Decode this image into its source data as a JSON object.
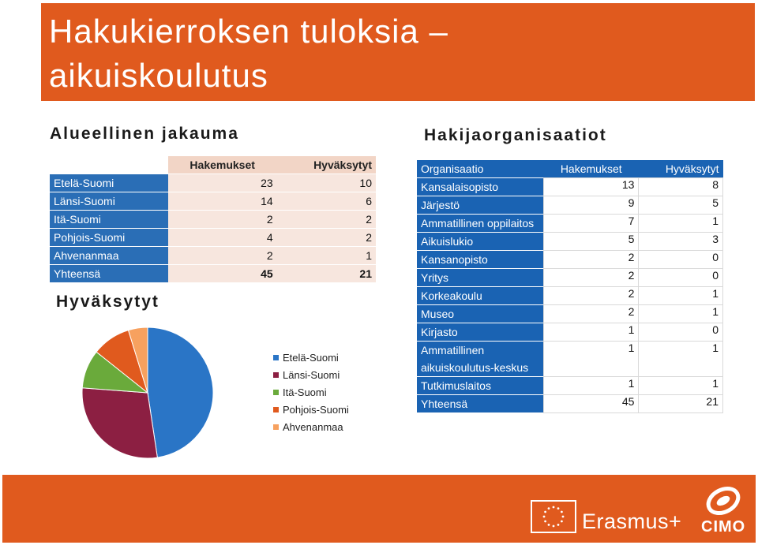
{
  "title": "Hakukierroksen tuloksia – aikuiskoulutus",
  "regional": {
    "heading": "Alueellinen jakauma",
    "columns": [
      "Hakemukset",
      "Hyväksytyt"
    ],
    "rows": [
      {
        "name": "Etelä-Suomi",
        "applications": "23",
        "accepted": "10"
      },
      {
        "name": "Länsi-Suomi",
        "applications": "14",
        "accepted": "6"
      },
      {
        "name": "Itä-Suomi",
        "applications": "2",
        "accepted": "2"
      },
      {
        "name": "Pohjois-Suomi",
        "applications": "4",
        "accepted": "2"
      },
      {
        "name": "Ahvenanmaa",
        "applications": "2",
        "accepted": "1"
      }
    ],
    "total": {
      "name": "Yhteensä",
      "applications": "45",
      "accepted": "21"
    }
  },
  "pie_heading": "Hyväksytyt",
  "chart_data": {
    "type": "pie",
    "title": "Hyväksytyt",
    "categories": [
      "Etelä-Suomi",
      "Länsi-Suomi",
      "Itä-Suomi",
      "Pohjois-Suomi",
      "Ahvenanmaa"
    ],
    "values": [
      10,
      6,
      2,
      2,
      1
    ],
    "colors": [
      "#2a75c6",
      "#8c1f42",
      "#6aaa3b",
      "#e05a1e",
      "#f7a15f"
    ],
    "legend_position": "right"
  },
  "organisations": {
    "heading": "Hakijaorganisaatiot",
    "columns": [
      "Organisaatio",
      "Hakemukset",
      "Hyväksytyt"
    ],
    "rows": [
      {
        "name": "Kansalaisopisto",
        "applications": "13",
        "accepted": "8"
      },
      {
        "name": "Järjestö",
        "applications": "9",
        "accepted": "5"
      },
      {
        "name": "Ammatillinen oppilaitos",
        "applications": "7",
        "accepted": "1"
      },
      {
        "name": "Aikuislukio",
        "applications": "5",
        "accepted": "3"
      },
      {
        "name": "Kansanopisto",
        "applications": "2",
        "accepted": "0"
      },
      {
        "name": "Yritys",
        "applications": "2",
        "accepted": "0"
      },
      {
        "name": "Korkeakoulu",
        "applications": "2",
        "accepted": "1"
      },
      {
        "name": "Museo",
        "applications": "2",
        "accepted": "1"
      },
      {
        "name": "Kirjasto",
        "applications": "1",
        "accepted": "0"
      },
      {
        "name": "Ammatillinen aikuiskoulutus-keskus",
        "applications": "1",
        "accepted": "1"
      },
      {
        "name": "Tutkimuslaitos",
        "applications": "1",
        "accepted": "1"
      },
      {
        "name": "Yhteensä",
        "applications": "45",
        "accepted": "21"
      }
    ]
  },
  "footer": {
    "erasmus_logo_text": "Erasmus+",
    "cimo_logo_text": "CIMO"
  }
}
